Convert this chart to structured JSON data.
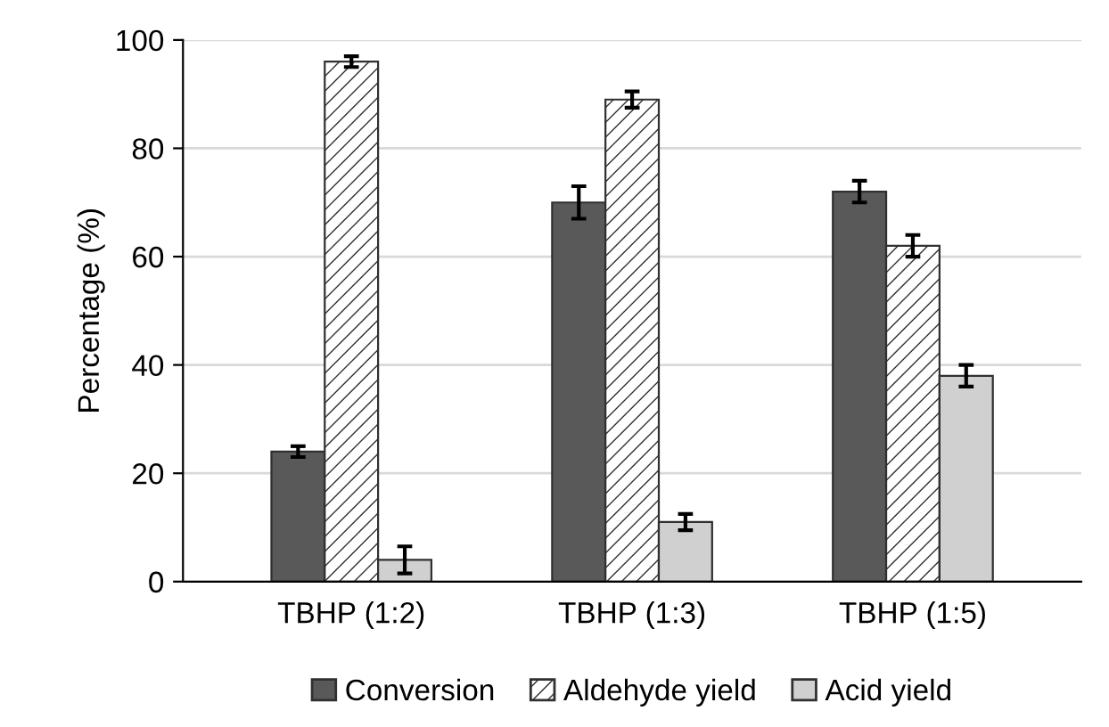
{
  "chart_data": {
    "type": "bar",
    "ylabel": "Percentage (%)",
    "categories": [
      "TBHP (1:2)",
      "TBHP (1:3)",
      "TBHP (1:5)"
    ],
    "series": [
      {
        "name": "Conversion",
        "color": "#595959",
        "values": [
          24,
          70,
          72
        ],
        "errors": [
          1,
          3,
          2
        ]
      },
      {
        "name": "Aldehyde yield",
        "color": "#ffffff",
        "values": [
          96,
          89,
          62
        ],
        "errors": [
          1,
          1.5,
          2
        ]
      },
      {
        "name": "Acid yield",
        "color": "#d0d0d0",
        "values": [
          4,
          11,
          38
        ],
        "errors": [
          2.5,
          1.5,
          2
        ]
      }
    ],
    "ylim": [
      0,
      100
    ],
    "yticks": [
      0,
      20,
      40,
      60,
      80,
      100
    ],
    "grid": "y",
    "legend": "bottom"
  }
}
